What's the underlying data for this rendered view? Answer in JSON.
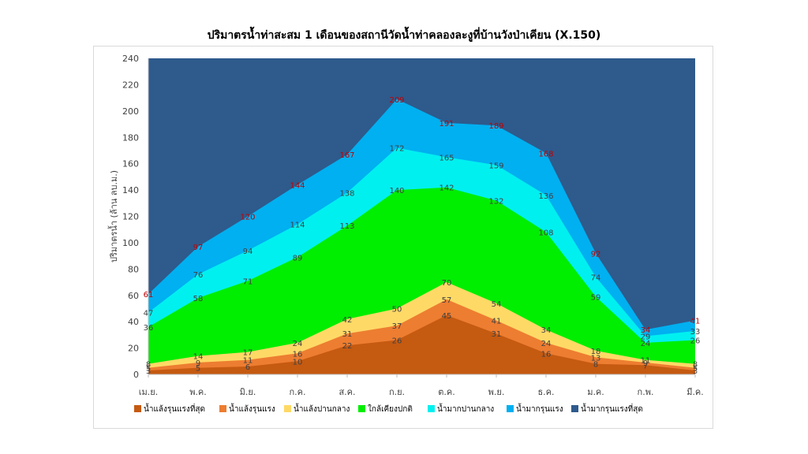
{
  "chart_data": {
    "type": "area",
    "stacking": "cumulative-thresholds",
    "title": "ปริมาตรน้ำท่าสะสม 1 เดือนของสถานีวัดน้ำท่าคลองละงูที่บ้านวังป่าเคียน (X.150)",
    "ylabel": "ปริมาตรน้ำ (ล้าน ลบ.ม.)",
    "xlabel": "",
    "ylim": [
      0,
      240
    ],
    "yticks": [
      0,
      20,
      40,
      60,
      80,
      100,
      120,
      140,
      160,
      180,
      200,
      220,
      240
    ],
    "categories": [
      "เม.ย.",
      "พ.ค.",
      "มิ.ย.",
      "ก.ค.",
      "ส.ค.",
      "ก.ย.",
      "ต.ค.",
      "พ.ย.",
      "ธ.ค.",
      "ม.ค.",
      "ก.พ.",
      "มี.ค."
    ],
    "legend_position": "bottom",
    "series": [
      {
        "name": "น้ำแล้งรุนแรงที่สุด",
        "color": "#c55a11",
        "values": [
          3,
          5,
          6,
          10,
          22,
          26,
          45,
          31,
          16,
          8,
          7,
          3
        ],
        "labels_color": "#404040"
      },
      {
        "name": "น้ำแล้งรุนแรง",
        "color": "#ed7d31",
        "values": [
          5,
          9,
          11,
          16,
          31,
          37,
          57,
          41,
          24,
          13,
          9,
          5
        ],
        "labels_color": "#404040"
      },
      {
        "name": "น้ำแล้งปานกลาง",
        "color": "#ffd966",
        "values": [
          8,
          14,
          17,
          24,
          42,
          50,
          70,
          54,
          34,
          18,
          11,
          8
        ],
        "labels_color": "#404040"
      },
      {
        "name": "ใกล้เคียงปกติ",
        "color": "#00ee00",
        "values": [
          36,
          58,
          71,
          89,
          113,
          140,
          142,
          132,
          108,
          59,
          24,
          26
        ],
        "labels_color": "#404040"
      },
      {
        "name": "น้ำมากปานกลาง",
        "color": "#00f0f0",
        "values": [
          47,
          76,
          94,
          114,
          138,
          172,
          165,
          159,
          136,
          74,
          29,
          33
        ],
        "labels_color": "#404040"
      },
      {
        "name": "น้ำมากรุนแรง",
        "color": "#00b0f0",
        "values": [
          61,
          97,
          120,
          144,
          167,
          209,
          191,
          189,
          168,
          92,
          34,
          41
        ],
        "labels_color": "#c00000"
      },
      {
        "name": "น้ำมากรุนแรงที่สุด",
        "color": "#2e5a8c",
        "values": [
          240,
          240,
          240,
          240,
          240,
          240,
          240,
          240,
          240,
          240,
          240,
          240
        ],
        "show_labels": false
      }
    ]
  }
}
